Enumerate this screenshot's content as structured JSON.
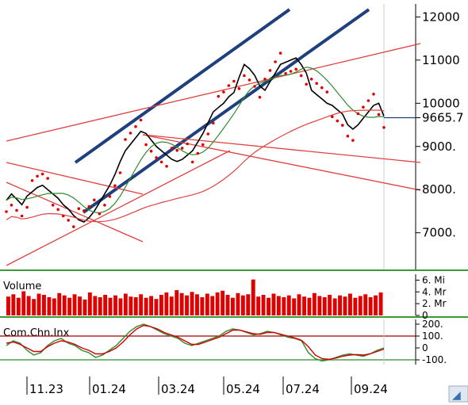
{
  "colors": {
    "price": "#000000",
    "sar": "#e00000",
    "trendline": "#1f3f7f",
    "redline": "#e04040",
    "ma_green": "#2e8b2e",
    "volume": "#e00000",
    "panel_border": "#3a9a3a",
    "cci_level": "#a00000",
    "cci_green": "#2e8b2e",
    "cci_red": "#d00000",
    "last_price_line": "#1f3f7f"
  },
  "chart_data": [
    {
      "type": "line",
      "panel": "price",
      "x_tick_labels": [
        "11.23",
        "01.24",
        "03.24",
        "05.24",
        "07.24",
        "09.24"
      ],
      "y_tick_labels": [
        "12000",
        "11000",
        "10000",
        "9665.7",
        "9000.",
        "8000.",
        "7000."
      ],
      "y_ticks": [
        12000,
        11000,
        10000,
        9665.7,
        9000,
        8000,
        7000
      ],
      "last_value": 9665.7,
      "ylim": [
        6150,
        12300
      ],
      "grid": false,
      "series": [
        {
          "values": [
            7750,
            7900,
            7780,
            7650,
            7850,
            7950,
            8050,
            8100,
            8000,
            7900,
            7800,
            7650,
            7550,
            7400,
            7300,
            7250,
            7350,
            7500,
            7700,
            7900,
            8100,
            8350,
            8650,
            8900,
            9050,
            9200,
            9350,
            9300,
            9150,
            9000,
            8900,
            8800,
            8700,
            8650,
            8700,
            8800,
            8900,
            9100,
            9300,
            9550,
            9800,
            9900,
            10000,
            10150,
            10250,
            10600,
            10900,
            10800,
            10650,
            10400,
            10300,
            10500,
            10700,
            10900,
            10950,
            11000,
            11050,
            10900,
            10700,
            10300,
            10200,
            10100,
            10000,
            9950,
            9850,
            9750,
            9500,
            9400,
            9500,
            9650,
            9800,
            9950,
            10000,
            9700
          ]
        }
      ]
    },
    {
      "type": "bar",
      "panel": "volume",
      "title": "Volume",
      "y_tick_labels": [
        "6. Mi",
        "4. Mr",
        "2. Mr",
        "0"
      ],
      "y_ticks": [
        6,
        4,
        2,
        0
      ],
      "ylim": [
        0,
        7
      ],
      "values": [
        3.2,
        3.6,
        3.0,
        4.1,
        3.3,
        2.8,
        3.7,
        3.5,
        3.1,
        2.9,
        3.8,
        3.4,
        3.0,
        3.6,
        3.2,
        2.7,
        3.9,
        3.3,
        3.1,
        3.5,
        3.0,
        3.4,
        2.9,
        3.7,
        3.2,
        3.1,
        3.6,
        3.0,
        3.3,
        2.8,
        3.5,
        3.9,
        3.2,
        4.3,
        3.8,
        3.4,
        4.0,
        3.6,
        3.1,
        3.7,
        3.3,
        3.9,
        4.2,
        3.5,
        3.0,
        3.8,
        3.4,
        3.6,
        6.1,
        3.2,
        3.5,
        3.0,
        3.7,
        3.3,
        3.1,
        3.4,
        2.9,
        3.6,
        3.2,
        3.0,
        3.8,
        3.3,
        3.1,
        3.5,
        2.9,
        3.4,
        3.2,
        3.7,
        3.0,
        3.3,
        3.6,
        3.1,
        3.4,
        3.9
      ]
    },
    {
      "type": "line",
      "panel": "cci",
      "title": "Com.Chn.Inx",
      "y_tick_labels": [
        "200.",
        "100.",
        "0",
        "-100."
      ],
      "y_ticks": [
        200,
        100,
        0,
        -100
      ],
      "ylim": [
        -140,
        240
      ],
      "series": [
        {
          "color": "#2e8b2e",
          "values": [
            20,
            60,
            40,
            -20,
            -60,
            -40,
            20,
            60,
            80,
            40,
            20,
            -20,
            -40,
            -80,
            -60,
            -20,
            20,
            80,
            140,
            180,
            200,
            180,
            150,
            120,
            100,
            80,
            40,
            20,
            40,
            60,
            80,
            100,
            140,
            160,
            150,
            130,
            110,
            120,
            140,
            130,
            110,
            90,
            80,
            60,
            -40,
            -90,
            -110,
            -100,
            -80,
            -60,
            -50,
            -60,
            -70,
            -50,
            -20,
            0
          ]
        },
        {
          "color": "#d00000",
          "values": [
            40,
            50,
            30,
            0,
            -30,
            -30,
            10,
            40,
            60,
            50,
            30,
            0,
            -20,
            -50,
            -50,
            -30,
            0,
            50,
            110,
            160,
            190,
            180,
            160,
            130,
            110,
            90,
            60,
            30,
            30,
            50,
            70,
            90,
            120,
            150,
            150,
            135,
            120,
            115,
            130,
            130,
            115,
            100,
            85,
            65,
            10,
            -60,
            -90,
            -95,
            -85,
            -70,
            -60,
            -55,
            -60,
            -50,
            -30,
            -10
          ]
        }
      ]
    }
  ]
}
